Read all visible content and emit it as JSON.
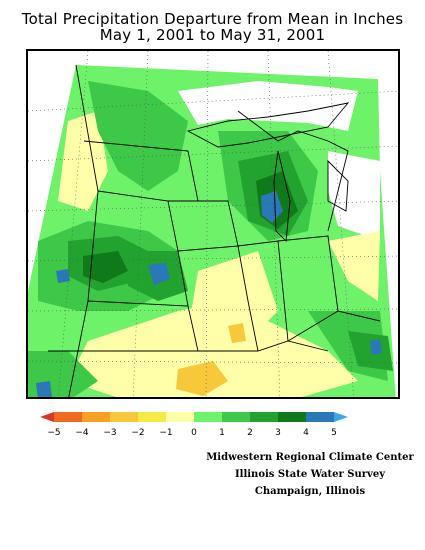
{
  "title_line1": "Total Precipitation Departure from Mean in Inches",
  "title_line2": "May 1, 2001 to May 31, 2001",
  "legend": {
    "ticks": [
      "−5",
      "−4",
      "−3",
      "−2",
      "−1",
      "0",
      "1",
      "2",
      "3",
      "4",
      "5"
    ],
    "colors": [
      "#d8352b",
      "#f06b20",
      "#f7a024",
      "#f6c83a",
      "#f4ec44",
      "#ffffaa",
      "#6ef26a",
      "#3dc848",
      "#22a330",
      "#0e7a1a",
      "#2a78b8",
      "#3aa8e8"
    ]
  },
  "credits": {
    "line1": "Midwestern Regional Climate Center",
    "line2": "Illinois State Water Survey",
    "line3": "Champaign, Illinois"
  }
}
